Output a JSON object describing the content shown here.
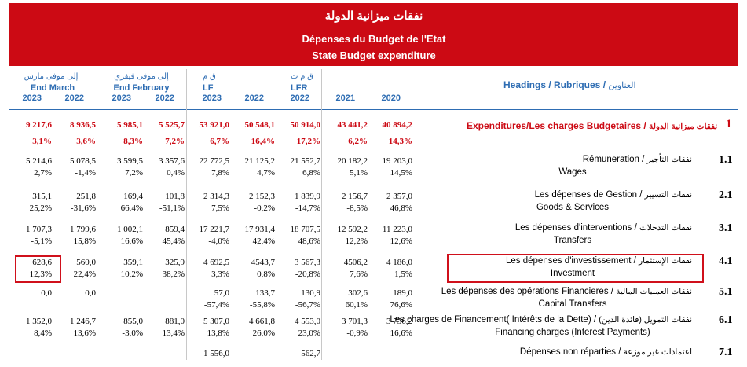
{
  "banner": {
    "title_ar": "نفقات ميزانية الدولة",
    "title_fr": "Dépenses du Budget de l'Etat",
    "title_en": "State Budget expenditure"
  },
  "header": {
    "columns": [
      {
        "ar": "إلى موفى مارس",
        "label": "End March",
        "year": "2023"
      },
      {
        "year": "2022"
      },
      {
        "ar": "إلى موفى فيفري",
        "label": "End February",
        "year": "2023"
      },
      {
        "year": "2022"
      },
      {
        "ar": "ق م",
        "label": "LF",
        "year": "2023"
      },
      {
        "year": "2022"
      },
      {
        "ar": "ق م ت",
        "label": "LFR",
        "year": "2022"
      },
      {
        "year": "2021"
      },
      {
        "year": "2020"
      }
    ],
    "headings": "Headings / Rubriques",
    "headings_ar": "العناوين"
  },
  "total": {
    "label": "Expenditures/Les charges Budgetaires",
    "label_ar": "نفقات ميزانية الدولة",
    "num": "1",
    "values": [
      "9 217,6",
      "8 936,5",
      "5 985,1",
      "5 525,7",
      "53 921,0",
      "50 548,1",
      "50 914,0",
      "43 441,2",
      "40 894,2"
    ],
    "pcts": [
      "3,1%",
      "3,6%",
      "8,3%",
      "7,2%",
      "6,7%",
      "16,4%",
      "17,2%",
      "6,2%",
      "14,3%"
    ]
  },
  "rows": [
    {
      "num": "1.1",
      "fr": "Rémuneration",
      "ar": "نفقات التأجير",
      "en": "Wages",
      "values": [
        "5 214,6",
        "5 078,5",
        "3 599,5",
        "3 357,6",
        "22 772,5",
        "21 125,2",
        "21 552,7",
        "20 182,2",
        "19 203,0"
      ],
      "pcts": [
        "2,7%",
        "-1,4%",
        "7,2%",
        "0,4%",
        "7,8%",
        "4,7%",
        "6,8%",
        "5,1%",
        "14,5%"
      ]
    },
    {
      "num": "2.1",
      "fr": "Les dépenses de Gestion",
      "ar": "نفقات التسيير",
      "en": "Goods & Services",
      "values": [
        "315,1",
        "251,8",
        "169,4",
        "101,8",
        "2 314,3",
        "2 152,3",
        "1 839,9",
        "2 156,7",
        "2 357,0"
      ],
      "pcts": [
        "25,2%",
        "-31,6%",
        "66,4%",
        "-51,1%",
        "7,5%",
        "-0,2%",
        "-14,7%",
        "-8,5%",
        "46,8%"
      ]
    },
    {
      "num": "3.1",
      "fr": "Les dépenses d'interventions",
      "ar": "نفقات التدخلات",
      "en": "Transfers",
      "values": [
        "1 707,3",
        "1 799,6",
        "1 002,1",
        "859,4",
        "17 221,7",
        "17 931,4",
        "18 707,5",
        "12 592,2",
        "11 223,0"
      ],
      "pcts": [
        "-5,1%",
        "15,8%",
        "16,6%",
        "45,4%",
        "-4,0%",
        "42,4%",
        "48,6%",
        "12,2%",
        "12,6%"
      ]
    },
    {
      "num": "4.1",
      "fr": "Les dépenses d'investissement",
      "ar": "نفقات الإستثمار",
      "en": "Investment",
      "values": [
        "628,6",
        "560,0",
        "359,1",
        "325,9",
        "4 692,5",
        "4543,7",
        "3 567,3",
        "4506,2",
        "4 186,0"
      ],
      "pcts": [
        "12,3%",
        "22,4%",
        "10,2%",
        "38,2%",
        "3,3%",
        "0,8%",
        "-20,8%",
        "7,6%",
        "1,5%"
      ]
    },
    {
      "num": "5.1",
      "fr": "Les dépenses des opérations Financieres",
      "ar": "نفقات العمليات المالية",
      "en": "Capital Transfers",
      "values": [
        "0,0",
        "0,0",
        "",
        "",
        "57,0",
        "133,7",
        "130,9",
        "302,6",
        "189,0"
      ],
      "pcts": [
        "",
        "",
        "",
        "",
        "-57,4%",
        "-55,8%",
        "-56,7%",
        "60,1%",
        "76,6%"
      ]
    },
    {
      "num": "6.1",
      "fr": "Les charges de Financement( Intérêts de la Dette)",
      "ar": "نفقات التمويل (فائدة الدين)",
      "en": "Financing charges (Interest Payments)",
      "values": [
        "1 352,0",
        "1 246,7",
        "855,0",
        "881,0",
        "5 307,0",
        "4 661,8",
        "4 553,0",
        "3 701,3",
        "3 736,2"
      ],
      "pcts": [
        "8,4%",
        "13,6%",
        "-3,0%",
        "13,4%",
        "13,8%",
        "26,0%",
        "23,0%",
        "-0,9%",
        "16,6%"
      ]
    },
    {
      "num": "7.1",
      "fr": "Dépenses non réparties",
      "ar": "اعتمادات غير موزعة",
      "en": "",
      "values": [
        "",
        "",
        "",
        "",
        "1 556,0",
        "",
        "562,7",
        "",
        ""
      ],
      "pcts": [
        "",
        "",
        "",
        "",
        "",
        "",
        "",
        "",
        ""
      ]
    }
  ]
}
